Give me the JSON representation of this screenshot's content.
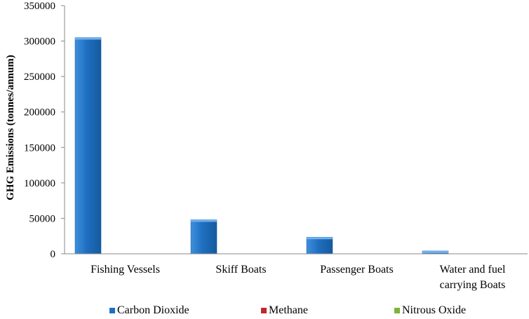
{
  "chart_data": {
    "type": "bar",
    "categories": [
      "Fishing Vessels",
      "Skiff Boats",
      "Passenger Boats",
      "Water and fuel carrying Boats"
    ],
    "category_lines": [
      [
        "Fishing Vessels"
      ],
      [
        "Skiff Boats"
      ],
      [
        "Passenger Boats"
      ],
      [
        "Water and fuel",
        "carrying Boats"
      ]
    ],
    "series": [
      {
        "name": "Carbon Dioxide",
        "values": [
          305000,
          48000,
          23500,
          4000
        ],
        "color": "#1f6fc0"
      },
      {
        "name": "Methane",
        "values": [
          0,
          0,
          0,
          0
        ],
        "color": "#c0282c"
      },
      {
        "name": "Nitrous Oxide",
        "values": [
          0,
          0,
          0,
          0
        ],
        "color": "#7fb23a"
      }
    ],
    "ylabel": "GHG Emissions (tonnes/annum)",
    "xlabel": "",
    "ylim": [
      0,
      350000
    ],
    "yticks": [
      "0",
      "50000",
      "100000",
      "150000",
      "200000",
      "250000",
      "300000",
      "350000"
    ],
    "grid": false,
    "legend_position": "bottom"
  }
}
